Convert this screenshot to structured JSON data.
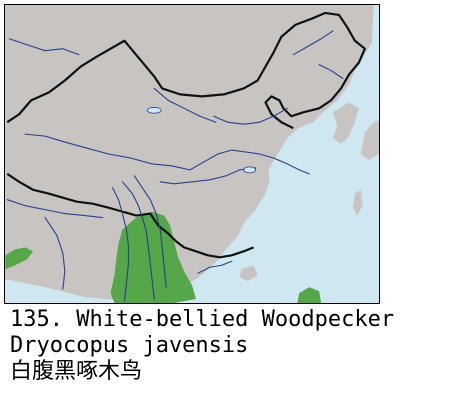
{
  "map": {
    "land_color": "#c8c4c1",
    "water_color": "#cfe7f1",
    "range_color": "#56a64a",
    "border_color": "#111111",
    "river_color": "#2a3f8f"
  },
  "caption": {
    "number_title": "135. White-bellied Woodpecker",
    "scientific_name": "Dryocopus javensis",
    "chinese_name": "白腹黑啄木鸟"
  }
}
